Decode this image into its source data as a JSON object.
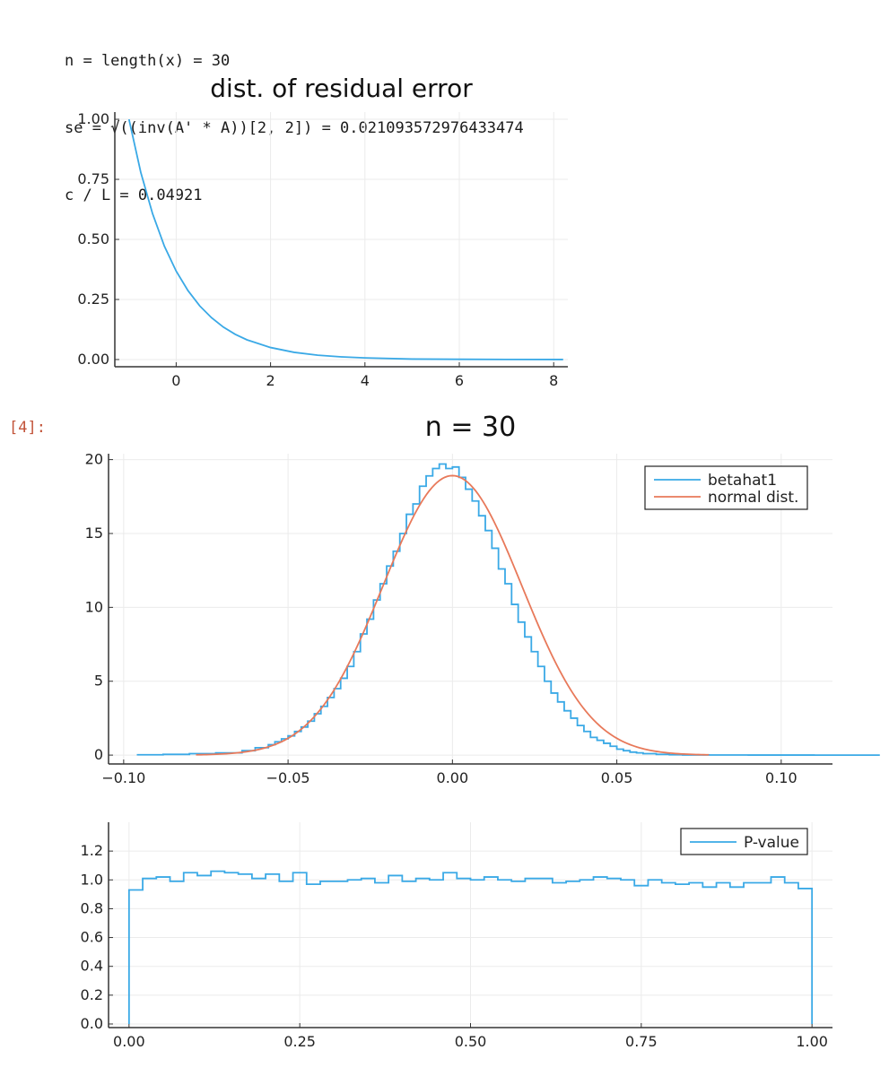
{
  "output": {
    "lines": [
      "n = length(x) = 30",
      "se = √((inv(A' * A))[2, 2]) = 0.021093572976433474",
      "c / L = 0.04921"
    ],
    "prompt": "[4]:"
  },
  "colors": {
    "blue": "#3aa9e6",
    "orange": "#e8795a",
    "axis": "#333333",
    "grid": "#ebebeb"
  },
  "chart_data": [
    {
      "type": "line",
      "title": "dist. of residual error",
      "xlim": [
        -1.3,
        8.3
      ],
      "ylim": [
        -0.03,
        1.03
      ],
      "xticks": [
        0,
        2,
        4,
        6,
        8
      ],
      "xtick_labels": [
        "0",
        "2",
        "4",
        "6",
        "8"
      ],
      "yticks": [
        0,
        0.25,
        0.5,
        0.75,
        1
      ],
      "ytick_labels": [
        "0.00",
        "0.25",
        "0.50",
        "0.75",
        "1.00"
      ],
      "grid": true,
      "series": [
        {
          "x": [
            -1,
            -0.75,
            -0.5,
            -0.25,
            0,
            0.25,
            0.5,
            0.75,
            1,
            1.25,
            1.5,
            2,
            2.5,
            3,
            3.5,
            4,
            5,
            6,
            7,
            8.2
          ],
          "y": [
            1.0,
            0.779,
            0.607,
            0.472,
            0.368,
            0.287,
            0.223,
            0.174,
            0.135,
            0.105,
            0.082,
            0.05,
            0.03,
            0.018,
            0.011,
            0.007,
            0.002,
            0.001,
            0.0003,
            0.0001
          ]
        }
      ]
    },
    {
      "type": "line",
      "title": "n = 30",
      "xlim": [
        -0.1046,
        0.1156
      ],
      "ylim": [
        -0.6,
        20.4
      ],
      "xticks": [
        -0.1,
        -0.05,
        0,
        0.05,
        0.1
      ],
      "xtick_labels": [
        "−0.10",
        "−0.05",
        "0.00",
        "0.05",
        "0.10"
      ],
      "yticks": [
        0,
        5,
        10,
        15,
        20
      ],
      "ytick_labels": [
        "0",
        "5",
        "10",
        "15",
        "20"
      ],
      "legend_position": "top-right",
      "grid": true,
      "series": [
        {
          "name": "betahat1",
          "kind": "step",
          "x": [
            -0.096,
            -0.088,
            -0.08,
            -0.072,
            -0.064,
            -0.06,
            -0.056,
            -0.054,
            -0.052,
            -0.05,
            -0.048,
            -0.046,
            -0.044,
            -0.042,
            -0.04,
            -0.038,
            -0.036,
            -0.034,
            -0.032,
            -0.03,
            -0.028,
            -0.026,
            -0.024,
            -0.022,
            -0.02,
            -0.018,
            -0.016,
            -0.014,
            -0.012,
            -0.01,
            -0.008,
            -0.006,
            -0.004,
            -0.002,
            0.0,
            0.002,
            0.004,
            0.006,
            0.008,
            0.01,
            0.012,
            0.014,
            0.016,
            0.018,
            0.02,
            0.022,
            0.024,
            0.026,
            0.028,
            0.03,
            0.032,
            0.034,
            0.036,
            0.038,
            0.04,
            0.042,
            0.044,
            0.046,
            0.048,
            0.05,
            0.052,
            0.054,
            0.056,
            0.058,
            0.062,
            0.066,
            0.07,
            0.078,
            0.09,
            0.11
          ],
          "y": [
            0.02,
            0.05,
            0.1,
            0.15,
            0.3,
            0.5,
            0.7,
            0.9,
            1.1,
            1.3,
            1.6,
            1.9,
            2.3,
            2.8,
            3.3,
            3.9,
            4.5,
            5.2,
            6.0,
            7.0,
            8.2,
            9.2,
            10.5,
            11.6,
            12.8,
            13.8,
            15.0,
            16.3,
            17.0,
            18.2,
            18.9,
            19.4,
            19.7,
            19.4,
            19.5,
            18.8,
            18.0,
            17.2,
            16.2,
            15.2,
            14.0,
            12.6,
            11.6,
            10.2,
            9.0,
            8.0,
            7.0,
            6.0,
            5.0,
            4.2,
            3.6,
            3.0,
            2.5,
            2.0,
            1.6,
            1.2,
            1.0,
            0.8,
            0.6,
            0.4,
            0.3,
            0.2,
            0.15,
            0.1,
            0.05,
            0.02,
            0.01,
            0.005,
            0.002,
            0.001
          ]
        },
        {
          "name": "normal dist.",
          "kind": "line",
          "mean": 0.0,
          "std": 0.02109,
          "x_range": [
            -0.078,
            0.078
          ]
        }
      ]
    },
    {
      "type": "line",
      "title": "",
      "xlim": [
        -0.03,
        1.03
      ],
      "ylim": [
        -0.025,
        1.4
      ],
      "xticks": [
        0,
        0.25,
        0.5,
        0.75,
        1
      ],
      "xtick_labels": [
        "0.00",
        "0.25",
        "0.50",
        "0.75",
        "1.00"
      ],
      "yticks": [
        0,
        0.2,
        0.4,
        0.6,
        0.8,
        1.0,
        1.2
      ],
      "ytick_labels": [
        "0.0",
        "0.2",
        "0.4",
        "0.6",
        "0.8",
        "1.0",
        "1.2"
      ],
      "legend_position": "top-right",
      "grid": true,
      "series": [
        {
          "name": "P-value",
          "kind": "step",
          "x": [
            0.0,
            0.02,
            0.04,
            0.06,
            0.08,
            0.1,
            0.12,
            0.14,
            0.16,
            0.18,
            0.2,
            0.22,
            0.24,
            0.26,
            0.28,
            0.3,
            0.32,
            0.34,
            0.36,
            0.38,
            0.4,
            0.42,
            0.44,
            0.46,
            0.48,
            0.5,
            0.52,
            0.54,
            0.56,
            0.58,
            0.6,
            0.62,
            0.64,
            0.66,
            0.68,
            0.7,
            0.72,
            0.74,
            0.76,
            0.78,
            0.8,
            0.82,
            0.84,
            0.86,
            0.88,
            0.9,
            0.92,
            0.94,
            0.96,
            0.98
          ],
          "y": [
            0.93,
            1.01,
            1.02,
            0.99,
            1.05,
            1.03,
            1.06,
            1.05,
            1.04,
            1.01,
            1.04,
            0.99,
            1.05,
            0.97,
            0.99,
            0.99,
            1.0,
            1.01,
            0.98,
            1.03,
            0.99,
            1.01,
            1.0,
            1.05,
            1.01,
            1.0,
            1.02,
            1.0,
            0.99,
            1.01,
            1.01,
            0.98,
            0.99,
            1.0,
            1.02,
            1.01,
            1.0,
            0.96,
            1.0,
            0.98,
            0.97,
            0.98,
            0.95,
            0.98,
            0.95,
            0.98,
            0.98,
            1.02,
            0.98,
            0.94
          ]
        }
      ]
    }
  ]
}
